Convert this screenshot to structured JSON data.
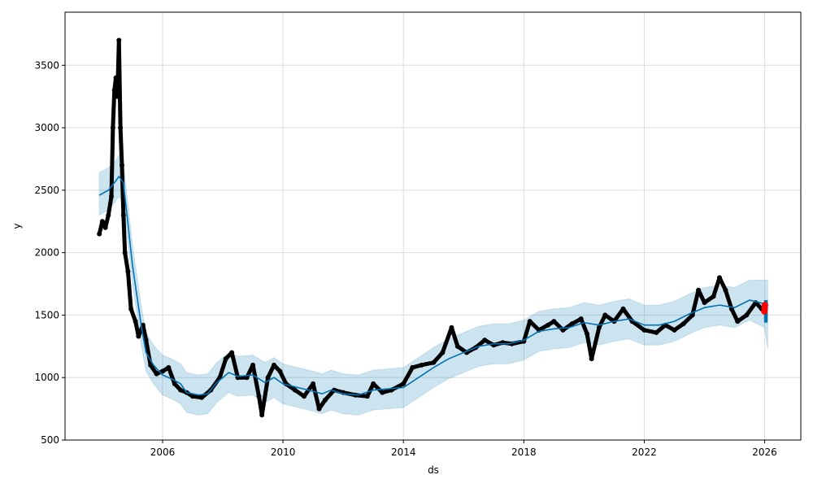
{
  "chart_data": {
    "type": "line",
    "title": "",
    "xlabel": "ds",
    "ylabel": "y",
    "xlim": [
      2002.76,
      2027.2
    ],
    "ylim": [
      500,
      3925
    ],
    "grid": true,
    "xticks": [
      2006,
      2010,
      2014,
      2018,
      2022,
      2026
    ],
    "xtick_labels": [
      "2006",
      "2010",
      "2014",
      "2018",
      "2022",
      "2026"
    ],
    "yticks": [
      500,
      1000,
      1500,
      2000,
      2500,
      3000,
      3500
    ],
    "ytick_labels": [
      "500",
      "1000",
      "1500",
      "2000",
      "2500",
      "3000",
      "3500"
    ],
    "colors": {
      "observed": "#000000",
      "forecast": "#0072B2",
      "band": "#0072B2",
      "future": "#ff0000"
    },
    "forecast": {
      "x": [
        2003.9,
        2004.2,
        2004.4,
        2004.55,
        2004.7,
        2005.0,
        2005.3,
        2005.45,
        2005.7,
        2006.0,
        2006.3,
        2006.6,
        2006.8,
        2007.2,
        2007.5,
        2007.8,
        2008.2,
        2008.5,
        2009.0,
        2009.4,
        2009.7,
        2010.0,
        2010.5,
        2011.0,
        2011.3,
        2011.6,
        2012.0,
        2012.5,
        2013.0,
        2013.5,
        2014.0,
        2014.5,
        2015.0,
        2015.5,
        2016.0,
        2016.5,
        2017.0,
        2017.5,
        2018.0,
        2018.5,
        2019.0,
        2019.5,
        2020.0,
        2020.5,
        2021.0,
        2021.5,
        2022.0,
        2022.5,
        2023.0,
        2023.5,
        2024.0,
        2024.5,
        2025.0,
        2025.5,
        2026.0,
        2026.1
      ],
      "yhat": [
        2460,
        2500,
        2560,
        2610,
        2560,
        1900,
        1400,
        1200,
        1100,
        1020,
        990,
        950,
        880,
        860,
        870,
        960,
        1040,
        1010,
        1020,
        960,
        1000,
        950,
        920,
        890,
        870,
        900,
        870,
        860,
        900,
        910,
        920,
        1000,
        1080,
        1150,
        1200,
        1250,
        1270,
        1270,
        1300,
        1370,
        1390,
        1400,
        1440,
        1420,
        1450,
        1470,
        1420,
        1420,
        1450,
        1510,
        1560,
        1580,
        1560,
        1620,
        1590,
        1540
      ],
      "lower": [
        2300,
        2340,
        2400,
        2450,
        2400,
        1750,
        1250,
        1050,
        950,
        860,
        830,
        790,
        720,
        700,
        710,
        800,
        880,
        850,
        860,
        800,
        840,
        790,
        760,
        730,
        710,
        740,
        710,
        700,
        740,
        750,
        760,
        840,
        920,
        990,
        1040,
        1090,
        1110,
        1110,
        1140,
        1210,
        1230,
        1240,
        1280,
        1260,
        1290,
        1310,
        1260,
        1260,
        1290,
        1350,
        1400,
        1420,
        1400,
        1460,
        1400,
        1230
      ],
      "upper": [
        2640,
        2680,
        2720,
        2780,
        2720,
        2060,
        1560,
        1360,
        1260,
        1180,
        1150,
        1110,
        1040,
        1020,
        1030,
        1120,
        1200,
        1170,
        1180,
        1120,
        1160,
        1110,
        1080,
        1050,
        1030,
        1060,
        1030,
        1020,
        1060,
        1070,
        1080,
        1160,
        1240,
        1310,
        1360,
        1410,
        1430,
        1430,
        1460,
        1530,
        1550,
        1560,
        1600,
        1580,
        1610,
        1630,
        1580,
        1580,
        1610,
        1670,
        1720,
        1740,
        1720,
        1780,
        1780,
        1780
      ]
    },
    "observed": {
      "x": [
        2003.9,
        2004.0,
        2004.1,
        2004.2,
        2004.3,
        2004.35,
        2004.4,
        2004.45,
        2004.5,
        2004.55,
        2004.6,
        2004.65,
        2004.7,
        2004.75,
        2004.85,
        2004.95,
        2005.1,
        2005.2,
        2005.35,
        2005.45,
        2005.6,
        2005.8,
        2006.0,
        2006.2,
        2006.4,
        2006.6,
        2006.8,
        2007.0,
        2007.3,
        2007.6,
        2007.9,
        2008.1,
        2008.3,
        2008.5,
        2008.8,
        2009.0,
        2009.2,
        2009.3,
        2009.5,
        2009.7,
        2009.9,
        2010.1,
        2010.4,
        2010.7,
        2011.0,
        2011.2,
        2011.4,
        2011.7,
        2012.0,
        2012.4,
        2012.8,
        2013.0,
        2013.3,
        2013.6,
        2014.0,
        2014.3,
        2014.6,
        2015.0,
        2015.3,
        2015.6,
        2015.8,
        2016.1,
        2016.4,
        2016.7,
        2017.0,
        2017.3,
        2017.6,
        2018.0,
        2018.2,
        2018.5,
        2018.8,
        2019.0,
        2019.3,
        2019.6,
        2019.9,
        2020.1,
        2020.25,
        2020.5,
        2020.7,
        2021.0,
        2021.3,
        2021.6,
        2022.0,
        2022.4,
        2022.7,
        2023.0,
        2023.3,
        2023.6,
        2023.8,
        2024.0,
        2024.3,
        2024.5,
        2024.7,
        2024.9,
        2025.1,
        2025.4,
        2025.7,
        2025.9
      ],
      "y": [
        2150,
        2250,
        2200,
        2300,
        2450,
        3000,
        3300,
        3400,
        3250,
        3700,
        3000,
        2700,
        2300,
        2000,
        1850,
        1550,
        1450,
        1330,
        1420,
        1300,
        1100,
        1030,
        1050,
        1080,
        950,
        900,
        880,
        850,
        840,
        900,
        1000,
        1150,
        1200,
        1000,
        1000,
        1100,
        850,
        700,
        1000,
        1100,
        1050,
        950,
        900,
        850,
        950,
        750,
        820,
        900,
        880,
        860,
        850,
        950,
        880,
        900,
        950,
        1080,
        1100,
        1120,
        1200,
        1400,
        1250,
        1200,
        1240,
        1300,
        1260,
        1280,
        1270,
        1290,
        1450,
        1380,
        1420,
        1450,
        1380,
        1430,
        1470,
        1350,
        1150,
        1400,
        1500,
        1450,
        1550,
        1450,
        1380,
        1360,
        1420,
        1380,
        1430,
        1500,
        1700,
        1600,
        1650,
        1800,
        1700,
        1550,
        1450,
        1500,
        1600,
        1550
      ]
    },
    "future_points": {
      "x": [
        2025.99,
        2026.0,
        2026.01
      ],
      "y": [
        1530,
        1560,
        1580
      ]
    }
  }
}
